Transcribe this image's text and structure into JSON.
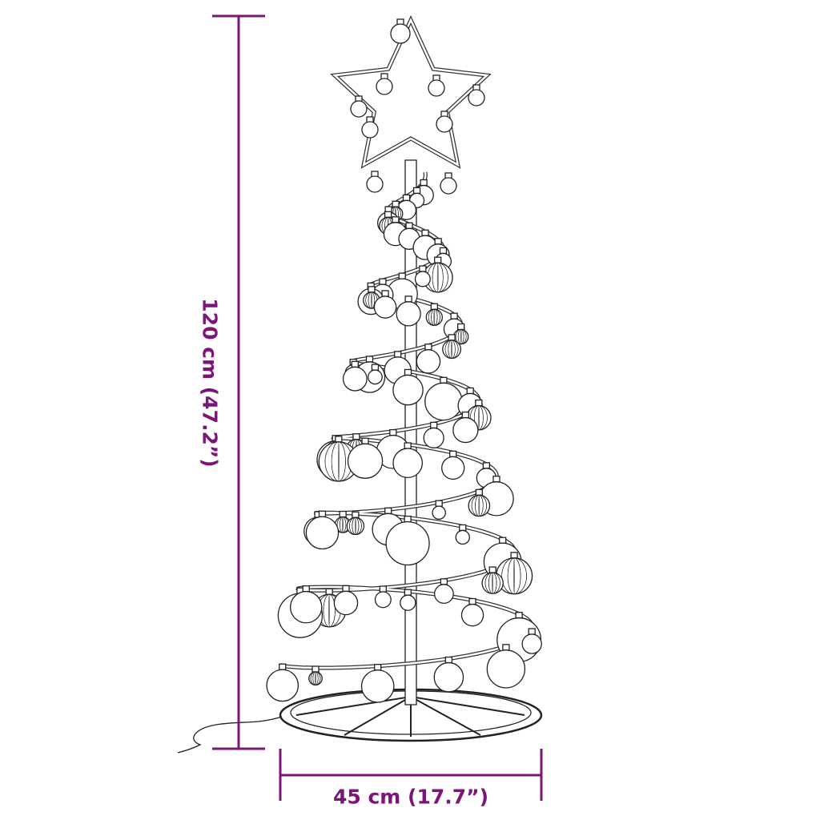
{
  "dimensions": {
    "height_label": "120 cm (47.2”)",
    "width_label": "45 cm (17.7”)"
  },
  "colors": {
    "dimension": "#7b1578",
    "drawing": "#222222"
  }
}
